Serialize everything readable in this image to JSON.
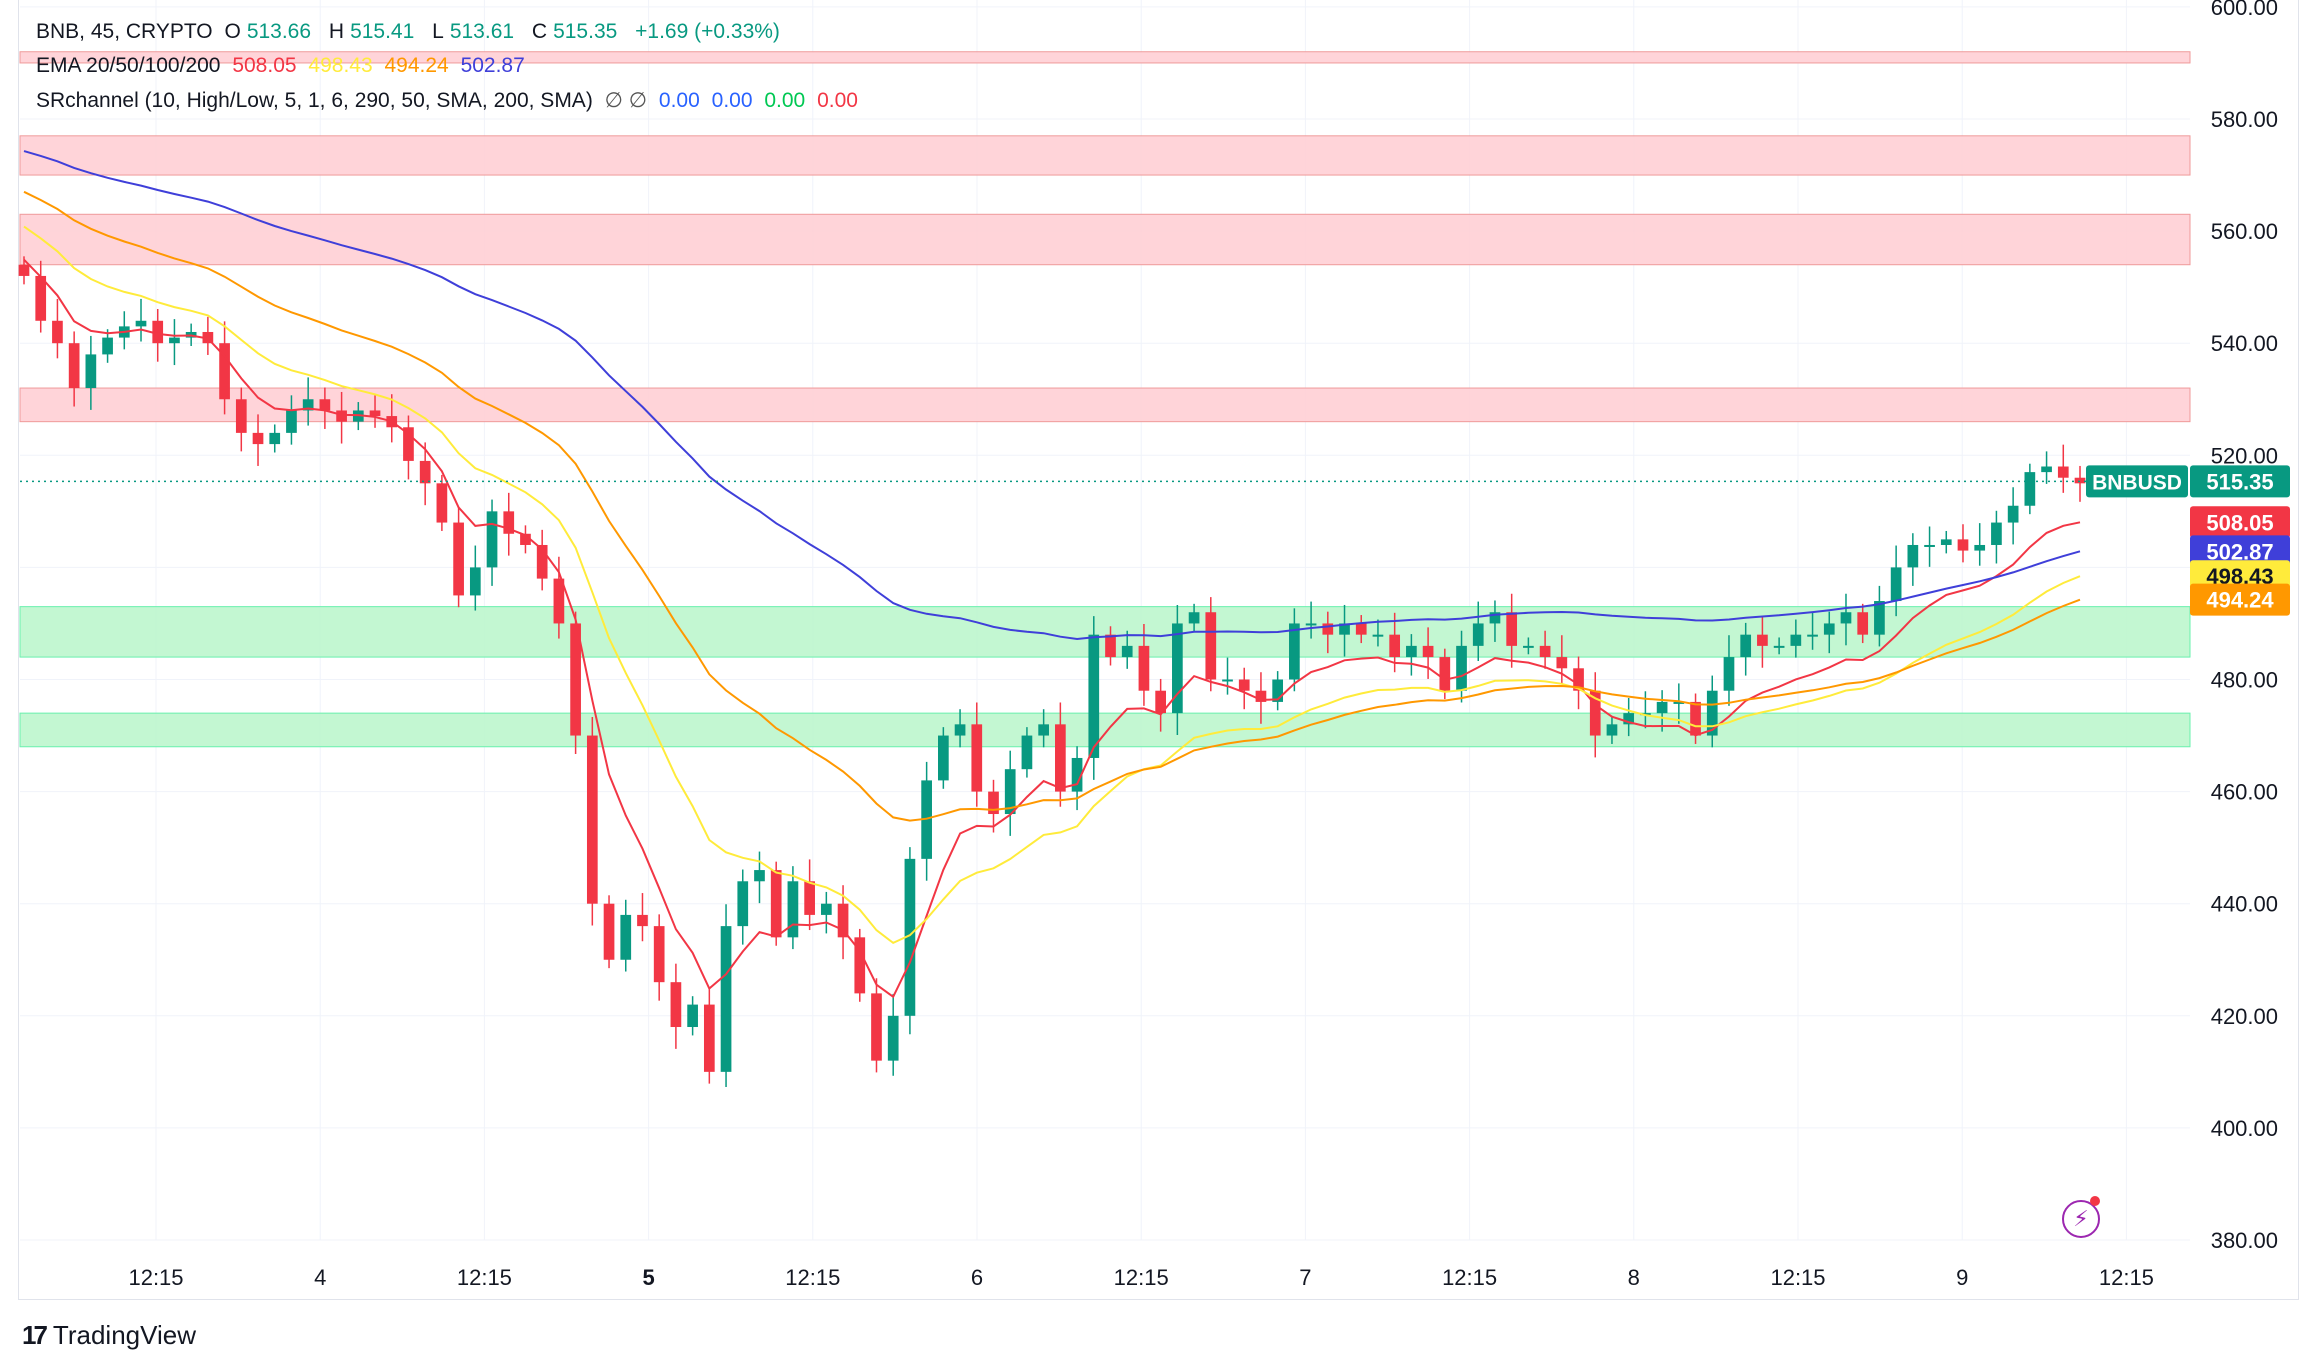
{
  "legend": {
    "symbol": "BNB, 45, CRYPTO",
    "o_label": "O",
    "o_value": "513.66",
    "h_label": "H",
    "h_value": "515.41",
    "l_label": "L",
    "l_value": "513.61",
    "c_label": "C",
    "c_value": "515.35",
    "change": "+1.69 (+0.33%)",
    "ema_label": "EMA 20/50/100/200",
    "ema_values": [
      "508.05",
      "498.43",
      "494.24",
      "502.87"
    ],
    "sr_label": "SRchannel (10, High/Low, 5, 1, 6, 290, 50, SMA, 200, SMA)",
    "sr_symbols": "∅  ∅",
    "sr_values": [
      "0.00",
      "0.00",
      "0.00",
      "0.00"
    ]
  },
  "branding": {
    "name": "TradingView",
    "mark": "17"
  },
  "icons": {
    "logo": "tradingview-logo-icon",
    "replay": "lightning-icon"
  },
  "colors": {
    "up": "#089981",
    "down": "#f23645",
    "ema20": "#f23645",
    "ema50": "#ffeb3b",
    "ema100": "#ff9800",
    "ema200": "#3f3fd9",
    "res_zone": "#ffcdd2",
    "sup_zone": "#b9f6ca"
  },
  "chart_data": {
    "type": "candlestick",
    "symbol": "BNBUSD",
    "interval": "45",
    "ylim": [
      380,
      600
    ],
    "y_ticks": [
      "600.00",
      "580.00",
      "560.00",
      "540.00",
      "520.00",
      "500.00",
      "480.00",
      "460.00",
      "440.00",
      "420.00",
      "400.00",
      "380.00"
    ],
    "x_ticks": [
      {
        "label": "12:15",
        "bold": false
      },
      {
        "label": "4",
        "bold": false
      },
      {
        "label": "12:15",
        "bold": false
      },
      {
        "label": "5",
        "bold": true
      },
      {
        "label": "12:15",
        "bold": false
      },
      {
        "label": "6",
        "bold": false
      },
      {
        "label": "12:15",
        "bold": false
      },
      {
        "label": "7",
        "bold": false
      },
      {
        "label": "12:15",
        "bold": false
      },
      {
        "label": "8",
        "bold": false
      },
      {
        "label": "12:15",
        "bold": false
      },
      {
        "label": "9",
        "bold": false
      },
      {
        "label": "12:15",
        "bold": false
      }
    ],
    "resistance_zones": [
      [
        590,
        592
      ],
      [
        570,
        577
      ],
      [
        554,
        563
      ],
      [
        526,
        532
      ]
    ],
    "support_zones": [
      [
        484,
        493
      ],
      [
        468,
        474
      ]
    ],
    "last_price": 515.35,
    "last_price_label": "515.35",
    "ticker_label": "BNBUSD",
    "candles_close_path": [
      552,
      544,
      540,
      532,
      538,
      541,
      543,
      544,
      540,
      541,
      542,
      540,
      530,
      524,
      522,
      524,
      528,
      530,
      528,
      526,
      528,
      527,
      525,
      519,
      515,
      508,
      495,
      500,
      510,
      506,
      504,
      498,
      490,
      470,
      440,
      430,
      438,
      436,
      426,
      418,
      422,
      410,
      436,
      444,
      446,
      434,
      444,
      438,
      440,
      434,
      424,
      412,
      420,
      448,
      462,
      470,
      472,
      460,
      456,
      464,
      470,
      472,
      460,
      466,
      488,
      484,
      486,
      478,
      474,
      490,
      492,
      480,
      480,
      478,
      476,
      480,
      490,
      490,
      488,
      490,
      488,
      488,
      484,
      486,
      484,
      478,
      486,
      490,
      492,
      486,
      486,
      484,
      482,
      478,
      470,
      472,
      474,
      474,
      476,
      476,
      470,
      478,
      484,
      488,
      486,
      486,
      488,
      488,
      490,
      492,
      488,
      494,
      500,
      504,
      504,
      505,
      503,
      504,
      508,
      511,
      517,
      518,
      516,
      515
    ],
    "ema_values": [
      {
        "name": "EMA 20",
        "label": "508.05",
        "last": 508.05
      },
      {
        "name": "EMA 50",
        "label": "498.43",
        "last": 498.43
      },
      {
        "name": "EMA 100",
        "label": "494.24",
        "last": 494.24
      },
      {
        "name": "EMA 200",
        "label": "502.87",
        "last": 502.87
      }
    ]
  }
}
